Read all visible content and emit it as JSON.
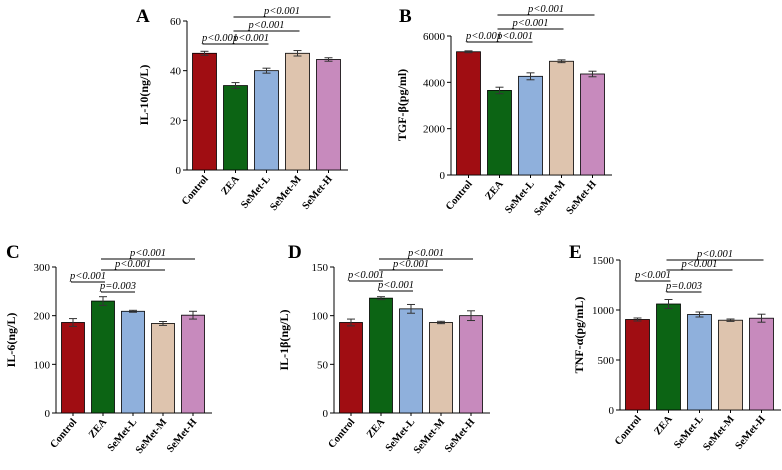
{
  "chart_data": [
    {
      "id": "A",
      "type": "bar",
      "letter": "A",
      "ylabel": "IL-10(ng/L)",
      "ylim": [
        0,
        60
      ],
      "yticks": [
        0,
        20,
        40,
        60
      ],
      "categories": [
        "Control",
        "ZEA",
        "SeMet-L",
        "SeMet-M",
        "SeMet-H"
      ],
      "values": [
        47,
        34,
        40,
        47,
        44.5
      ],
      "errors": [
        0.8,
        1.2,
        1.0,
        1.1,
        0.7
      ],
      "colors": [
        "#a00d12",
        "#0c6414",
        "#8fb0dc",
        "#dec4ae",
        "#c78abd"
      ],
      "comparisons": [
        {
          "from": 0,
          "to": 1,
          "label": "p<0.001"
        },
        {
          "from": 1,
          "to": 2,
          "label": "p<0.001"
        },
        {
          "from": 1,
          "to": 3,
          "label": "p<0.001"
        },
        {
          "from": 1,
          "to": 4,
          "label": "p<0.001"
        }
      ]
    },
    {
      "id": "B",
      "type": "bar",
      "letter": "B",
      "ylabel": "TGF-β(pg/ml)",
      "ylim": [
        0,
        6000
      ],
      "yticks": [
        0,
        2000,
        4000,
        6000
      ],
      "categories": [
        "Control",
        "ZEA",
        "SeMet-L",
        "SeMet-M",
        "SeMet-H"
      ],
      "values": [
        5320,
        3650,
        4260,
        4910,
        4360
      ],
      "errors": [
        40,
        140,
        150,
        60,
        120
      ],
      "colors": [
        "#a00d12",
        "#0c6414",
        "#8fb0dc",
        "#dec4ae",
        "#c78abd"
      ],
      "comparisons": [
        {
          "from": 0,
          "to": 1,
          "label": "p<0.001"
        },
        {
          "from": 1,
          "to": 2,
          "label": "p<0.001"
        },
        {
          "from": 1,
          "to": 3,
          "label": "p<0.001"
        },
        {
          "from": 1,
          "to": 4,
          "label": "p<0.001"
        }
      ]
    },
    {
      "id": "C",
      "type": "bar",
      "letter": "C",
      "ylabel": "IL-6(ng/L)",
      "ylim": [
        0,
        300
      ],
      "yticks": [
        0,
        100,
        200,
        300
      ],
      "categories": [
        "Control",
        "ZEA",
        "SeMet-L",
        "SeMet-M",
        "SeMet-H"
      ],
      "values": [
        186,
        230,
        209,
        184,
        201
      ],
      "errors": [
        8,
        9,
        2,
        4,
        8
      ],
      "colors": [
        "#a00d12",
        "#0c6414",
        "#8fb0dc",
        "#dec4ae",
        "#c78abd"
      ],
      "comparisons": [
        {
          "from": 0,
          "to": 1,
          "label": "p<0.001"
        },
        {
          "from": 1,
          "to": 2,
          "label": "p=0.003"
        },
        {
          "from": 1,
          "to": 3,
          "label": "p<0.001"
        },
        {
          "from": 1,
          "to": 4,
          "label": "p<0.001"
        }
      ]
    },
    {
      "id": "D",
      "type": "bar",
      "letter": "D",
      "ylabel": "IL-1β(ng/L)",
      "ylim": [
        0,
        150
      ],
      "yticks": [
        0,
        50,
        100,
        150
      ],
      "categories": [
        "Control",
        "ZEA",
        "SeMet-L",
        "SeMet-M",
        "SeMet-H"
      ],
      "values": [
        93,
        118,
        107,
        93,
        100
      ],
      "errors": [
        3.5,
        1.5,
        4.5,
        1.2,
        5
      ],
      "colors": [
        "#a00d12",
        "#0c6414",
        "#8fb0dc",
        "#dec4ae",
        "#c78abd"
      ],
      "comparisons": [
        {
          "from": 0,
          "to": 1,
          "label": "p<0.001"
        },
        {
          "from": 1,
          "to": 2,
          "label": "p<0.001"
        },
        {
          "from": 1,
          "to": 3,
          "label": "p<0.001"
        },
        {
          "from": 1,
          "to": 4,
          "label": "p<0.001"
        }
      ]
    },
    {
      "id": "E",
      "type": "bar",
      "letter": "E",
      "ylabel": "TNF-α(pg/mL)",
      "ylim": [
        0,
        1500
      ],
      "yticks": [
        0,
        500,
        1000,
        1500
      ],
      "categories": [
        "Control",
        "ZEA",
        "SeMet-L",
        "SeMet-M",
        "SeMet-H"
      ],
      "values": [
        905,
        1060,
        955,
        898,
        918
      ],
      "errors": [
        15,
        45,
        25,
        12,
        40
      ],
      "colors": [
        "#a00d12",
        "#0c6414",
        "#8fb0dc",
        "#dec4ae",
        "#c78abd"
      ],
      "comparisons": [
        {
          "from": 0,
          "to": 1,
          "label": "p<0.001"
        },
        {
          "from": 1,
          "to": 2,
          "label": "p=0.003"
        },
        {
          "from": 1,
          "to": 3,
          "label": "p<0.001"
        },
        {
          "from": 1,
          "to": 4,
          "label": "p<0.001"
        }
      ]
    }
  ]
}
